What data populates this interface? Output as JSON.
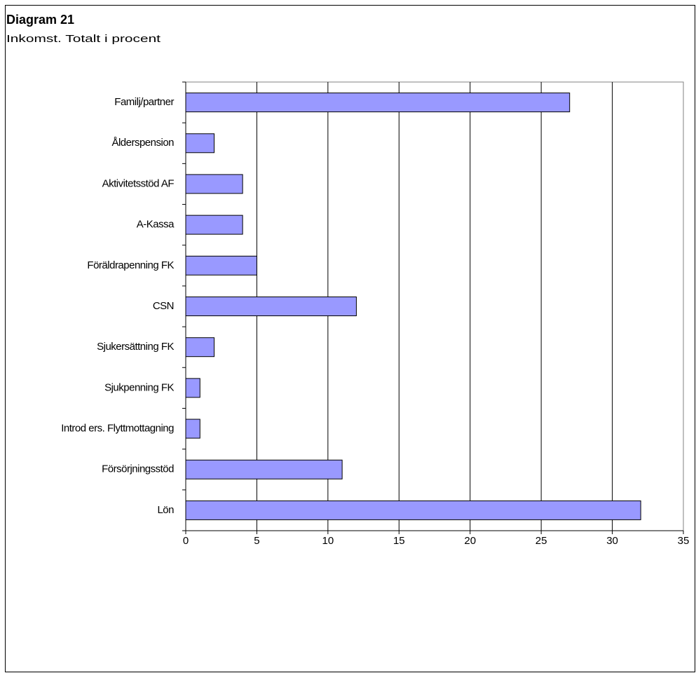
{
  "chart_data": {
    "type": "bar",
    "orientation": "horizontal",
    "title": "Diagram 21",
    "subtitle": "Inkomst. Totalt i procent",
    "categories": [
      "Familj/partner",
      "Ålderspension",
      "Aktivitetsstöd AF",
      "A-Kassa",
      "Föräldrapenning FK",
      "CSN",
      "Sjukersättning FK",
      "Sjukpenning FK",
      "Introd ers. Flyttmottagning",
      "Försörjningsstöd",
      "Lön"
    ],
    "values": [
      27,
      2,
      4,
      4,
      5,
      12,
      2,
      1,
      1,
      11,
      32
    ],
    "color": "#9999ff",
    "xlim": [
      0,
      35
    ],
    "xticks": [
      0,
      5,
      10,
      15,
      20,
      25,
      30,
      35
    ],
    "grid": true
  }
}
